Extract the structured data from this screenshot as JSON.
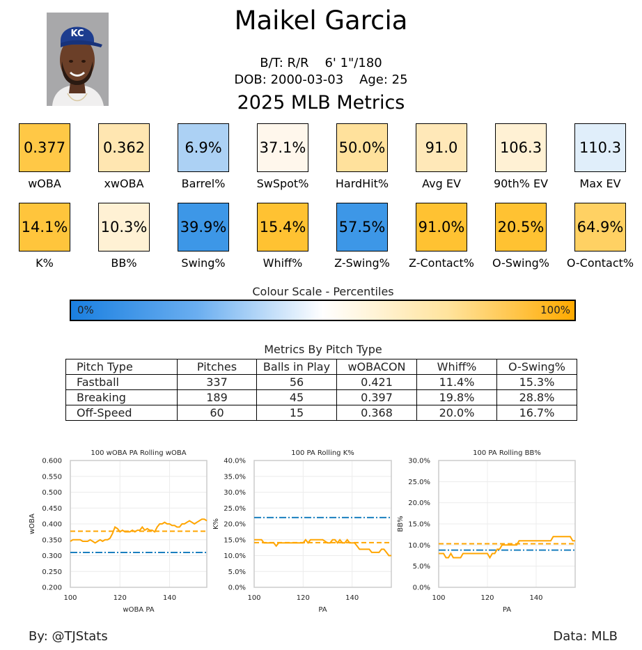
{
  "player": {
    "name": "Maikel Garcia",
    "bio_line1": "B/T: R/R    6' 1\"/180",
    "bio_line2": "DOB: 2000-03-03    Age: 25",
    "cap_logo": "KC"
  },
  "section_title": "2025 MLB Metrics",
  "metrics_row1": [
    {
      "value": "0.377",
      "label": "wOBA",
      "color": "#ffc846"
    },
    {
      "value": "0.362",
      "label": "xwOBA",
      "color": "#ffe6b1"
    },
    {
      "value": "6.9%",
      "label": "Barrel%",
      "color": "#acd1f4"
    },
    {
      "value": "37.1%",
      "label": "SwSpot%",
      "color": "#fff7ec"
    },
    {
      "value": "50.0%",
      "label": "HardHit%",
      "color": "#ffe19c"
    },
    {
      "value": "91.0",
      "label": "Avg EV",
      "color": "#ffe8b8"
    },
    {
      "value": "106.3",
      "label": "90th% EV",
      "color": "#fff1d4"
    },
    {
      "value": "110.3",
      "label": "Max EV",
      "color": "#e0eefa"
    }
  ],
  "metrics_row2": [
    {
      "value": "14.1%",
      "label": "K%",
      "color": "#ffc53c"
    },
    {
      "value": "10.3%",
      "label": "BB%",
      "color": "#fff1d4"
    },
    {
      "value": "39.9%",
      "label": "Swing%",
      "color": "#3d97e7"
    },
    {
      "value": "15.4%",
      "label": "Whiff%",
      "color": "#ffc232"
    },
    {
      "value": "57.5%",
      "label": "Z-Swing%",
      "color": "#3d97e7"
    },
    {
      "value": "91.0%",
      "label": "Z-Contact%",
      "color": "#ffc232"
    },
    {
      "value": "20.5%",
      "label": "O-Swing%",
      "color": "#ffc232"
    },
    {
      "value": "64.9%",
      "label": "O-Contact%",
      "color": "#ffd163"
    }
  ],
  "colour_scale": {
    "title": "Colour Scale - Percentiles",
    "low": "0%",
    "high": "100%"
  },
  "pitch_table": {
    "title": "Metrics By Pitch Type",
    "headers": [
      "Pitch Type",
      "Pitches",
      "Balls in Play",
      "wOBACON",
      "Whiff%",
      "O-Swing%"
    ],
    "rows": [
      [
        "Fastball",
        "337",
        "56",
        "0.421",
        "11.4%",
        "15.3%"
      ],
      [
        "Breaking",
        "189",
        "45",
        "0.397",
        "19.8%",
        "28.8%"
      ],
      [
        "Off-Speed",
        "60",
        "15",
        "0.368",
        "20.0%",
        "16.7%"
      ]
    ]
  },
  "chart_data": [
    {
      "type": "line",
      "title": "100 wOBA PA Rolling wOBA",
      "xlabel": "wOBA PA",
      "ylabel": "wOBA",
      "xlim": [
        100,
        155
      ],
      "ylim": [
        0.2,
        0.6
      ],
      "xticks": [
        100,
        120,
        140
      ],
      "yticks": [
        0.2,
        0.25,
        0.3,
        0.35,
        0.4,
        0.45,
        0.5,
        0.55,
        0.6
      ],
      "ytick_labels": [
        "0.200",
        "0.250",
        "0.300",
        "0.350",
        "0.400",
        "0.450",
        "0.500",
        "0.550",
        "0.600"
      ],
      "grid": true,
      "line_color": "#ffa500",
      "series": [
        {
          "x": [
            100,
            101,
            102,
            104,
            105,
            106,
            107,
            108,
            109,
            110,
            111,
            112,
            113,
            114,
            115,
            116,
            117,
            118,
            119,
            120,
            121,
            122,
            123,
            124,
            125,
            126,
            127,
            128,
            129,
            130,
            131,
            132,
            133,
            134,
            135,
            136,
            137,
            138,
            139,
            140,
            141,
            142,
            143,
            144,
            145,
            146,
            147,
            148,
            149,
            150,
            151,
            152,
            153,
            154,
            155
          ],
          "y": [
            0.345,
            0.35,
            0.35,
            0.35,
            0.345,
            0.345,
            0.345,
            0.35,
            0.345,
            0.34,
            0.345,
            0.35,
            0.345,
            0.35,
            0.35,
            0.355,
            0.37,
            0.39,
            0.385,
            0.375,
            0.38,
            0.375,
            0.375,
            0.375,
            0.38,
            0.375,
            0.38,
            0.38,
            0.39,
            0.38,
            0.385,
            0.38,
            0.38,
            0.375,
            0.39,
            0.4,
            0.4,
            0.405,
            0.4,
            0.4,
            0.395,
            0.395,
            0.39,
            0.39,
            0.4,
            0.4,
            0.405,
            0.41,
            0.405,
            0.4,
            0.405,
            0.41,
            0.415,
            0.415,
            0.41
          ]
        }
      ],
      "reference_lines": [
        {
          "value": 0.377,
          "color": "#ffa500",
          "style": "dashed"
        },
        {
          "value": 0.31,
          "color": "#1a7fbf",
          "style": "dashdot"
        }
      ]
    },
    {
      "type": "line",
      "title": "100 PA Rolling K%",
      "xlabel": "PA",
      "ylabel": "K%",
      "xlim": [
        100,
        156
      ],
      "ylim": [
        0,
        0.4
      ],
      "xticks": [
        100,
        120,
        140
      ],
      "yticks": [
        0,
        0.05,
        0.1,
        0.15,
        0.2,
        0.25,
        0.3,
        0.35,
        0.4
      ],
      "ytick_labels": [
        "0.0%",
        "5.0%",
        "10.0%",
        "15.0%",
        "20.0%",
        "25.0%",
        "30.0%",
        "35.0%",
        "40.0%"
      ],
      "grid": true,
      "line_color": "#ffa500",
      "series": [
        {
          "x": [
            100,
            103,
            104,
            107,
            108,
            109,
            110,
            112,
            114,
            116,
            118,
            119,
            120,
            121,
            122,
            123,
            125,
            127,
            128,
            130,
            131,
            132,
            133,
            134,
            135,
            136,
            137,
            138,
            139,
            140,
            141,
            142,
            143,
            144,
            145,
            146,
            147,
            148,
            149,
            150,
            151,
            152,
            153,
            154,
            155,
            156
          ],
          "y": [
            0.15,
            0.15,
            0.14,
            0.14,
            0.14,
            0.13,
            0.14,
            0.14,
            0.14,
            0.14,
            0.14,
            0.14,
            0.14,
            0.15,
            0.14,
            0.15,
            0.15,
            0.15,
            0.15,
            0.14,
            0.14,
            0.15,
            0.15,
            0.14,
            0.15,
            0.14,
            0.14,
            0.15,
            0.14,
            0.14,
            0.14,
            0.13,
            0.12,
            0.12,
            0.12,
            0.12,
            0.12,
            0.11,
            0.11,
            0.11,
            0.11,
            0.12,
            0.12,
            0.11,
            0.1,
            0.1
          ]
        }
      ],
      "reference_lines": [
        {
          "value": 0.141,
          "color": "#ffa500",
          "style": "dashed"
        },
        {
          "value": 0.22,
          "color": "#1a7fbf",
          "style": "dashdot"
        }
      ]
    },
    {
      "type": "line",
      "title": "100 PA Rolling BB%",
      "xlabel": "PA",
      "ylabel": "BB%",
      "xlim": [
        100,
        156
      ],
      "ylim": [
        0,
        0.3
      ],
      "xticks": [
        100,
        120,
        140
      ],
      "yticks": [
        0,
        0.05,
        0.1,
        0.15,
        0.2,
        0.25,
        0.3
      ],
      "ytick_labels": [
        "0.0%",
        "5.0%",
        "10.0%",
        "15.0%",
        "20.0%",
        "25.0%",
        "30.0%"
      ],
      "grid": true,
      "line_color": "#ffa500",
      "series": [
        {
          "x": [
            100,
            101,
            102,
            103,
            104,
            105,
            106,
            107,
            108,
            109,
            110,
            111,
            112,
            113,
            114,
            115,
            116,
            117,
            118,
            119,
            120,
            121,
            122,
            123,
            124,
            125,
            126,
            127,
            128,
            129,
            130,
            131,
            132,
            133,
            134,
            135,
            136,
            137,
            138,
            139,
            140,
            141,
            142,
            143,
            144,
            145,
            146,
            147,
            148,
            149,
            150,
            151,
            152,
            153,
            154,
            155,
            156
          ],
          "y": [
            0.08,
            0.08,
            0.08,
            0.07,
            0.07,
            0.08,
            0.07,
            0.07,
            0.07,
            0.07,
            0.08,
            0.08,
            0.08,
            0.08,
            0.08,
            0.08,
            0.08,
            0.08,
            0.08,
            0.08,
            0.08,
            0.07,
            0.08,
            0.08,
            0.09,
            0.09,
            0.1,
            0.1,
            0.1,
            0.1,
            0.1,
            0.1,
            0.1,
            0.11,
            0.11,
            0.11,
            0.11,
            0.11,
            0.11,
            0.11,
            0.11,
            0.11,
            0.11,
            0.11,
            0.11,
            0.11,
            0.11,
            0.12,
            0.12,
            0.12,
            0.12,
            0.12,
            0.12,
            0.12,
            0.12,
            0.11,
            0.11
          ]
        }
      ],
      "reference_lines": [
        {
          "value": 0.103,
          "color": "#ffa500",
          "style": "dashed"
        },
        {
          "value": 0.088,
          "color": "#1a7fbf",
          "style": "dashdot"
        }
      ]
    }
  ],
  "footer": {
    "left": "By: @TJStats",
    "right": "Data: MLB"
  }
}
